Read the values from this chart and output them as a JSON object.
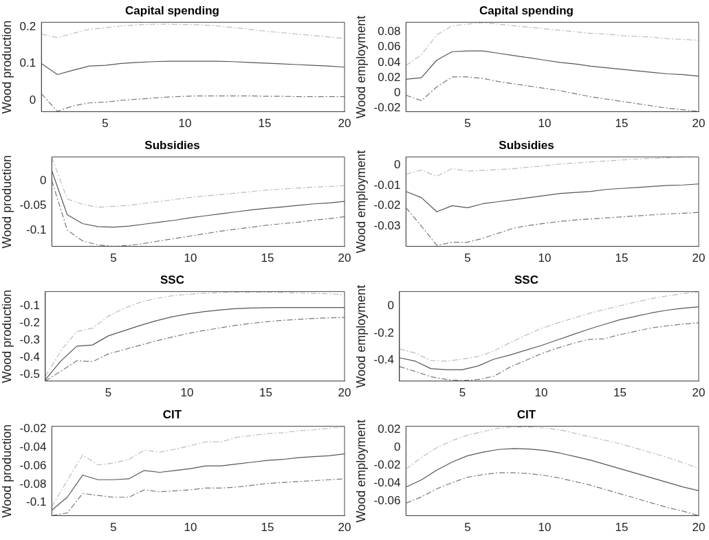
{
  "chart_data": [
    {
      "type": "line",
      "title": "Capital spending",
      "ylabel": "Wood production",
      "x": [
        1,
        2,
        3,
        4,
        5,
        6,
        7,
        8,
        9,
        10,
        11,
        12,
        13,
        14,
        15,
        16,
        17,
        18,
        19,
        20
      ],
      "xlim": [
        1,
        20
      ],
      "xticks": [
        5,
        10,
        15,
        20
      ],
      "ylim": [
        -0.031,
        0.212
      ],
      "yticks": [
        0,
        0.1,
        0.2
      ],
      "grid": false,
      "legend": false,
      "marker": "none",
      "series": [
        {
          "color": "#555555",
          "line_style": "solid",
          "values": [
            0.1,
            0.07,
            0.082,
            0.093,
            0.095,
            0.1,
            0.103,
            0.105,
            0.106,
            0.106,
            0.106,
            0.106,
            0.105,
            0.103,
            0.101,
            0.099,
            0.097,
            0.095,
            0.093,
            0.09
          ]
        },
        {
          "color": "#bbbbbb",
          "line_style": "dashed",
          "values": [
            0.18,
            0.17,
            0.182,
            0.193,
            0.197,
            0.202,
            0.205,
            0.207,
            0.207,
            0.206,
            0.205,
            0.202,
            0.198,
            0.193,
            0.188,
            0.184,
            0.18,
            0.176,
            0.172,
            0.168
          ]
        },
        {
          "color": "#777777",
          "line_style": "dashed",
          "values": [
            0.018,
            -0.03,
            -0.015,
            -0.007,
            -0.005,
            0,
            0.003,
            0.006,
            0.009,
            0.011,
            0.012,
            0.012,
            0.012,
            0.012,
            0.011,
            0.011,
            0.01,
            0.01,
            0.01,
            0.01
          ]
        }
      ]
    },
    {
      "type": "line",
      "title": "Capital spending",
      "ylabel": "Wood employment",
      "x": [
        1,
        2,
        3,
        4,
        5,
        6,
        7,
        8,
        9,
        10,
        11,
        12,
        13,
        14,
        15,
        16,
        17,
        18,
        19,
        20
      ],
      "xlim": [
        1,
        20
      ],
      "xticks": [
        5,
        10,
        15,
        20
      ],
      "ylim": [
        -0.0245,
        0.0925
      ],
      "yticks": [
        -0.02,
        0,
        0.02,
        0.04,
        0.06,
        0.08
      ],
      "grid": false,
      "legend": false,
      "marker": "none",
      "series": [
        {
          "color": "#555555",
          "line_style": "solid",
          "values": [
            0.018,
            0.02,
            0.043,
            0.054,
            0.055,
            0.055,
            0.052,
            0.049,
            0.046,
            0.043,
            0.04,
            0.038,
            0.035,
            0.033,
            0.031,
            0.029,
            0.027,
            0.025,
            0.024,
            0.022
          ]
        },
        {
          "color": "#bbbbbb",
          "line_style": "dashed",
          "values": [
            0.036,
            0.05,
            0.076,
            0.088,
            0.09,
            0.092,
            0.09,
            0.088,
            0.086,
            0.084,
            0.082,
            0.08,
            0.078,
            0.077,
            0.075,
            0.074,
            0.073,
            0.071,
            0.07,
            0.069
          ]
        },
        {
          "color": "#777777",
          "line_style": "dashed",
          "values": [
            -0.003,
            -0.01,
            0.008,
            0.021,
            0.021,
            0.019,
            0.015,
            0.012,
            0.009,
            0.006,
            0.003,
            -0.001,
            -0.005,
            -0.008,
            -0.011,
            -0.014,
            -0.017,
            -0.02,
            -0.022,
            -0.024
          ]
        }
      ]
    },
    {
      "type": "line",
      "title": "Subsidies",
      "ylabel": "Wood production",
      "x": [
        1,
        2,
        3,
        4,
        5,
        6,
        7,
        8,
        9,
        10,
        11,
        12,
        13,
        14,
        15,
        16,
        17,
        18,
        19,
        20
      ],
      "xlim": [
        1,
        20
      ],
      "xticks": [
        5,
        10,
        15,
        20
      ],
      "ylim": [
        -0.133,
        0.048
      ],
      "yticks": [
        -0.1,
        -0.05,
        0
      ],
      "grid": false,
      "legend": false,
      "marker": "none",
      "series": [
        {
          "color": "#555555",
          "line_style": "solid",
          "values": [
            0.02,
            -0.069,
            -0.087,
            -0.093,
            -0.094,
            -0.092,
            -0.088,
            -0.084,
            -0.08,
            -0.075,
            -0.071,
            -0.067,
            -0.063,
            -0.059,
            -0.056,
            -0.053,
            -0.05,
            -0.047,
            -0.045,
            -0.042
          ]
        },
        {
          "color": "#bbbbbb",
          "line_style": "dashed",
          "values": [
            0.047,
            -0.037,
            -0.048,
            -0.054,
            -0.052,
            -0.05,
            -0.046,
            -0.042,
            -0.038,
            -0.034,
            -0.031,
            -0.028,
            -0.025,
            -0.022,
            -0.019,
            -0.017,
            -0.015,
            -0.013,
            -0.012,
            -0.01
          ]
        },
        {
          "color": "#777777",
          "line_style": "dashed",
          "values": [
            0,
            -0.1,
            -0.122,
            -0.13,
            -0.133,
            -0.131,
            -0.127,
            -0.122,
            -0.117,
            -0.112,
            -0.107,
            -0.102,
            -0.098,
            -0.094,
            -0.09,
            -0.087,
            -0.084,
            -0.08,
            -0.077,
            -0.073
          ]
        }
      ]
    },
    {
      "type": "line",
      "title": "Subsidies",
      "ylabel": "Wood employment",
      "x": [
        1,
        2,
        3,
        4,
        5,
        6,
        7,
        8,
        9,
        10,
        11,
        12,
        13,
        14,
        15,
        16,
        17,
        18,
        19,
        20
      ],
      "xlim": [
        1,
        20
      ],
      "xticks": [
        5,
        10,
        15,
        20
      ],
      "ylim": [
        -0.04,
        0.004
      ],
      "yticks": [
        -0.03,
        -0.02,
        -0.01,
        0
      ],
      "grid": false,
      "legend": false,
      "marker": "none",
      "series": [
        {
          "color": "#555555",
          "line_style": "solid",
          "values": [
            -0.013,
            -0.016,
            -0.023,
            -0.02,
            -0.021,
            -0.019,
            -0.018,
            -0.017,
            -0.016,
            -0.015,
            -0.014,
            -0.0135,
            -0.013,
            -0.012,
            -0.0115,
            -0.011,
            -0.0105,
            -0.01,
            -0.0098,
            -0.0093
          ]
        },
        {
          "color": "#bbbbbb",
          "line_style": "dashed",
          "values": [
            -0.0045,
            -0.0025,
            -0.0055,
            -0.0017,
            -0.003,
            -0.0026,
            -0.0022,
            -0.0018,
            -0.001,
            -0.0003,
            0.0005,
            0.001,
            0.0015,
            0.002,
            0.0025,
            0.003,
            0.0033,
            0.0036,
            0.0039,
            0.004
          ]
        },
        {
          "color": "#777777",
          "line_style": "dashed",
          "values": [
            -0.021,
            -0.03,
            -0.0395,
            -0.038,
            -0.038,
            -0.036,
            -0.0335,
            -0.031,
            -0.0297,
            -0.0287,
            -0.0277,
            -0.027,
            -0.0265,
            -0.026,
            -0.0255,
            -0.025,
            -0.0245,
            -0.024,
            -0.0237,
            -0.0233
          ]
        }
      ]
    },
    {
      "type": "line",
      "title": "SSC",
      "ylabel": "Wood production",
      "x": [
        1,
        2,
        3,
        4,
        5,
        6,
        7,
        8,
        9,
        10,
        11,
        12,
        13,
        14,
        15,
        16,
        17,
        18,
        19,
        20
      ],
      "xlim": [
        1,
        20
      ],
      "xticks": [
        5,
        10,
        15,
        20
      ],
      "ylim": [
        -0.538,
        -0.017
      ],
      "yticks": [
        -0.5,
        -0.4,
        -0.3,
        -0.2,
        -0.1
      ],
      "grid": false,
      "legend": false,
      "marker": "none",
      "series": [
        {
          "color": "#555555",
          "line_style": "solid",
          "values": [
            -0.53,
            -0.42,
            -0.335,
            -0.328,
            -0.275,
            -0.245,
            -0.215,
            -0.188,
            -0.165,
            -0.148,
            -0.135,
            -0.125,
            -0.117,
            -0.113,
            -0.111,
            -0.11,
            -0.11,
            -0.11,
            -0.11,
            -0.11
          ]
        },
        {
          "color": "#bbbbbb",
          "line_style": "dashed",
          "values": [
            -0.51,
            -0.36,
            -0.25,
            -0.23,
            -0.16,
            -0.115,
            -0.08,
            -0.058,
            -0.042,
            -0.033,
            -0.027,
            -0.023,
            -0.021,
            -0.021,
            -0.021,
            -0.022,
            -0.024,
            -0.027,
            -0.03,
            -0.035
          ]
        },
        {
          "color": "#777777",
          "line_style": "dashed",
          "values": [
            -0.538,
            -0.48,
            -0.42,
            -0.425,
            -0.38,
            -0.355,
            -0.33,
            -0.305,
            -0.283,
            -0.262,
            -0.245,
            -0.23,
            -0.215,
            -0.203,
            -0.193,
            -0.185,
            -0.179,
            -0.174,
            -0.17,
            -0.168
          ]
        }
      ]
    },
    {
      "type": "line",
      "title": "SSC",
      "ylabel": "Wood employment",
      "x": [
        1,
        2,
        3,
        4,
        5,
        6,
        7,
        8,
        9,
        10,
        11,
        12,
        13,
        14,
        15,
        16,
        17,
        18,
        19,
        20
      ],
      "xlim": [
        1,
        20
      ],
      "xticks": [
        5,
        10,
        15,
        20
      ],
      "ylim": [
        -0.551,
        0.107
      ],
      "yticks": [
        -0.4,
        -0.2,
        0
      ],
      "grid": false,
      "legend": false,
      "marker": "none",
      "series": [
        {
          "color": "#555555",
          "line_style": "solid",
          "values": [
            -0.38,
            -0.405,
            -0.46,
            -0.468,
            -0.468,
            -0.44,
            -0.39,
            -0.36,
            -0.325,
            -0.29,
            -0.25,
            -0.21,
            -0.17,
            -0.135,
            -0.1,
            -0.075,
            -0.05,
            -0.03,
            -0.015,
            -0.005
          ]
        },
        {
          "color": "#bbbbbb",
          "line_style": "dashed",
          "values": [
            -0.315,
            -0.345,
            -0.4,
            -0.405,
            -0.39,
            -0.37,
            -0.33,
            -0.27,
            -0.215,
            -0.165,
            -0.125,
            -0.09,
            -0.055,
            -0.025,
            0.003,
            0.03,
            0.055,
            0.075,
            0.092,
            0.105
          ]
        },
        {
          "color": "#777777",
          "line_style": "dashed",
          "values": [
            -0.445,
            -0.48,
            -0.52,
            -0.54,
            -0.548,
            -0.54,
            -0.515,
            -0.45,
            -0.4,
            -0.35,
            -0.31,
            -0.275,
            -0.245,
            -0.24,
            -0.21,
            -0.185,
            -0.16,
            -0.145,
            -0.132,
            -0.123
          ]
        }
      ]
    },
    {
      "type": "line",
      "title": "CIT",
      "ylabel": "Wood production",
      "x": [
        1,
        2,
        3,
        4,
        5,
        6,
        7,
        8,
        9,
        10,
        11,
        12,
        13,
        14,
        15,
        16,
        17,
        18,
        19,
        20
      ],
      "xlim": [
        1,
        20
      ],
      "xticks": [
        5,
        10,
        15,
        20
      ],
      "ylim": [
        -0.114,
        -0.017
      ],
      "yticks": [
        -0.1,
        -0.08,
        -0.06,
        -0.04,
        -0.02
      ],
      "grid": false,
      "legend": false,
      "marker": "none",
      "series": [
        {
          "color": "#555555",
          "line_style": "solid",
          "values": [
            -0.108,
            -0.094,
            -0.07,
            -0.075,
            -0.075,
            -0.074,
            -0.065,
            -0.067,
            -0.065,
            -0.063,
            -0.06,
            -0.06,
            -0.058,
            -0.056,
            -0.054,
            -0.053,
            -0.051,
            -0.05,
            -0.049,
            -0.047
          ]
        },
        {
          "color": "#bbbbbb",
          "line_style": "dashed",
          "values": [
            -0.104,
            -0.076,
            -0.048,
            -0.059,
            -0.057,
            -0.053,
            -0.043,
            -0.045,
            -0.042,
            -0.038,
            -0.034,
            -0.034,
            -0.029,
            -0.027,
            -0.025,
            -0.024,
            -0.022,
            -0.021,
            -0.019,
            -0.018
          ]
        },
        {
          "color": "#777777",
          "line_style": "dashed",
          "values": [
            -0.114,
            -0.111,
            -0.09,
            -0.092,
            -0.094,
            -0.094,
            -0.086,
            -0.088,
            -0.087,
            -0.086,
            -0.084,
            -0.084,
            -0.083,
            -0.081,
            -0.079,
            -0.078,
            -0.077,
            -0.076,
            -0.075,
            -0.074
          ]
        }
      ]
    },
    {
      "type": "line",
      "title": "CIT",
      "ylabel": "Wood employment",
      "x": [
        1,
        2,
        3,
        4,
        5,
        6,
        7,
        8,
        9,
        10,
        11,
        12,
        13,
        14,
        15,
        16,
        17,
        18,
        19,
        20
      ],
      "xlim": [
        1,
        20
      ],
      "xticks": [
        5,
        10,
        15,
        20
      ],
      "ylim": [
        -0.076,
        0.024
      ],
      "yticks": [
        -0.06,
        -0.04,
        -0.02,
        0,
        0.02
      ],
      "grid": false,
      "legend": false,
      "marker": "none",
      "series": [
        {
          "color": "#555555",
          "line_style": "solid",
          "values": [
            -0.044,
            -0.036,
            -0.025,
            -0.016,
            -0.009,
            -0.005,
            -0.002,
            -0.001,
            -0.0015,
            -0.003,
            -0.006,
            -0.01,
            -0.014,
            -0.019,
            -0.024,
            -0.029,
            -0.034,
            -0.039,
            -0.044,
            -0.048
          ]
        },
        {
          "color": "#bbbbbb",
          "line_style": "dashed",
          "values": [
            -0.024,
            -0.011,
            0,
            0.008,
            0.014,
            0.018,
            0.022,
            0.023,
            0.023,
            0.022,
            0.02,
            0.016,
            0.012,
            0.008,
            0.004,
            -0.001,
            -0.006,
            -0.011,
            -0.017,
            -0.023
          ]
        },
        {
          "color": "#777777",
          "line_style": "dashed",
          "values": [
            -0.062,
            -0.055,
            -0.046,
            -0.039,
            -0.033,
            -0.03,
            -0.028,
            -0.028,
            -0.029,
            -0.031,
            -0.034,
            -0.038,
            -0.042,
            -0.047,
            -0.052,
            -0.057,
            -0.062,
            -0.067,
            -0.071,
            -0.076
          ]
        }
      ]
    }
  ]
}
